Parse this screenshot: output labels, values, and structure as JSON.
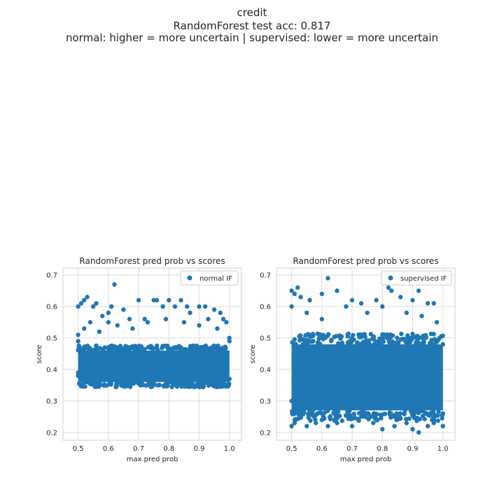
{
  "figure": {
    "title_lines": [
      "credit",
      "RandomForest test acc: 0.817",
      "normal: higher = more uncertain | supervised: lower = more uncertain"
    ]
  },
  "chart_data": [
    {
      "type": "scatter",
      "title": "RandomForest pred prob vs scores",
      "xlabel": "max pred prob",
      "ylabel": "score",
      "xlim": [
        0.45,
        1.04
      ],
      "ylim": [
        0.175,
        0.722
      ],
      "xticks": [
        "0.5",
        "0.6",
        "0.7",
        "0.8",
        "0.9",
        "1.0"
      ],
      "yticks": [
        "0.2",
        "0.3",
        "0.4",
        "0.5",
        "0.6",
        "0.7"
      ],
      "grid": true,
      "legend_position": "top-right",
      "color": "#1f77b4",
      "series": [
        {
          "name": "normal IF",
          "dense_band": {
            "x": [
              0.5,
              1.0
            ],
            "y": [
              0.36,
              0.46
            ]
          },
          "points": [
            [
              0.5,
              0.6
            ],
            [
              0.51,
              0.61
            ],
            [
              0.52,
              0.62
            ],
            [
              0.53,
              0.63
            ],
            [
              0.55,
              0.6
            ],
            [
              0.56,
              0.61
            ],
            [
              0.58,
              0.57
            ],
            [
              0.6,
              0.58
            ],
            [
              0.6,
              0.55
            ],
            [
              0.61,
              0.6
            ],
            [
              0.62,
              0.67
            ],
            [
              0.65,
              0.59
            ],
            [
              0.67,
              0.56
            ],
            [
              0.7,
              0.62
            ],
            [
              0.72,
              0.56
            ],
            [
              0.75,
              0.62
            ],
            [
              0.76,
              0.62
            ],
            [
              0.78,
              0.6
            ],
            [
              0.8,
              0.62
            ],
            [
              0.82,
              0.6
            ],
            [
              0.84,
              0.62
            ],
            [
              0.86,
              0.6
            ],
            [
              0.87,
              0.58
            ],
            [
              0.9,
              0.6
            ],
            [
              0.92,
              0.6
            ],
            [
              0.95,
              0.59
            ],
            [
              0.97,
              0.58
            ],
            [
              0.98,
              0.56
            ],
            [
              0.99,
              0.55
            ],
            [
              0.5,
              0.51
            ],
            [
              0.52,
              0.53
            ],
            [
              0.54,
              0.55
            ],
            [
              0.57,
              0.52
            ],
            [
              0.63,
              0.54
            ],
            [
              0.68,
              0.53
            ],
            [
              0.73,
              0.55
            ],
            [
              0.79,
              0.56
            ],
            [
              0.85,
              0.55
            ],
            [
              0.9,
              0.54
            ],
            [
              0.93,
              0.56
            ],
            [
              0.96,
              0.53
            ],
            [
              1.0,
              0.5
            ],
            [
              1.0,
              0.49
            ],
            [
              0.5,
              0.49
            ],
            [
              0.5,
              0.38
            ],
            [
              0.5,
              0.39
            ],
            [
              1.0,
              0.37
            ],
            [
              0.75,
              0.36
            ],
            [
              0.85,
              0.36
            ],
            [
              0.6,
              0.37
            ]
          ]
        }
      ]
    },
    {
      "type": "scatter",
      "title": "RandomForest pred prob vs scores",
      "xlabel": "max pred prob",
      "ylabel": "score",
      "xlim": [
        0.45,
        1.04
      ],
      "ylim": [
        0.175,
        0.722
      ],
      "xticks": [
        "0.5",
        "0.6",
        "0.7",
        "0.8",
        "0.9",
        "1.0"
      ],
      "yticks": [
        "0.2",
        "0.3",
        "0.4",
        "0.5",
        "0.6",
        "0.7"
      ],
      "grid": true,
      "legend_position": "top-right",
      "color": "#1f77b4",
      "series": [
        {
          "name": "supervised IF",
          "dense_band": {
            "x": [
              0.5,
              1.0
            ],
            "y": [
              0.27,
              0.48
            ]
          },
          "points": [
            [
              0.5,
              0.65
            ],
            [
              0.51,
              0.64
            ],
            [
              0.52,
              0.66
            ],
            [
              0.53,
              0.63
            ],
            [
              0.56,
              0.62
            ],
            [
              0.6,
              0.64
            ],
            [
              0.62,
              0.69
            ],
            [
              0.65,
              0.65
            ],
            [
              0.7,
              0.62
            ],
            [
              0.73,
              0.61
            ],
            [
              0.78,
              0.62
            ],
            [
              0.82,
              0.66
            ],
            [
              0.83,
              0.65
            ],
            [
              0.86,
              0.63
            ],
            [
              0.9,
              0.62
            ],
            [
              0.92,
              0.65
            ],
            [
              0.95,
              0.61
            ],
            [
              0.97,
              0.61
            ],
            [
              0.5,
              0.6
            ],
            [
              0.55,
              0.58
            ],
            [
              0.6,
              0.56
            ],
            [
              0.68,
              0.6
            ],
            [
              0.75,
              0.58
            ],
            [
              0.8,
              0.6
            ],
            [
              0.88,
              0.58
            ],
            [
              0.93,
              0.57
            ],
            [
              0.98,
              0.55
            ],
            [
              1.0,
              0.48
            ],
            [
              0.5,
              0.22
            ],
            [
              0.51,
              0.23
            ],
            [
              0.53,
              0.25
            ],
            [
              0.55,
              0.22
            ],
            [
              0.58,
              0.23
            ],
            [
              0.6,
              0.24
            ],
            [
              0.62,
              0.22
            ],
            [
              0.65,
              0.23
            ],
            [
              0.7,
              0.22
            ],
            [
              0.72,
              0.24
            ],
            [
              0.77,
              0.23
            ],
            [
              0.8,
              0.21
            ],
            [
              0.84,
              0.22
            ],
            [
              0.88,
              0.23
            ],
            [
              0.9,
              0.21
            ],
            [
              0.92,
              0.2
            ],
            [
              0.95,
              0.22
            ],
            [
              0.97,
              0.23
            ],
            [
              1.0,
              0.22
            ],
            [
              0.5,
              0.3
            ],
            [
              1.0,
              0.26
            ],
            [
              0.6,
              0.26
            ],
            [
              0.85,
              0.25
            ]
          ]
        }
      ]
    }
  ]
}
